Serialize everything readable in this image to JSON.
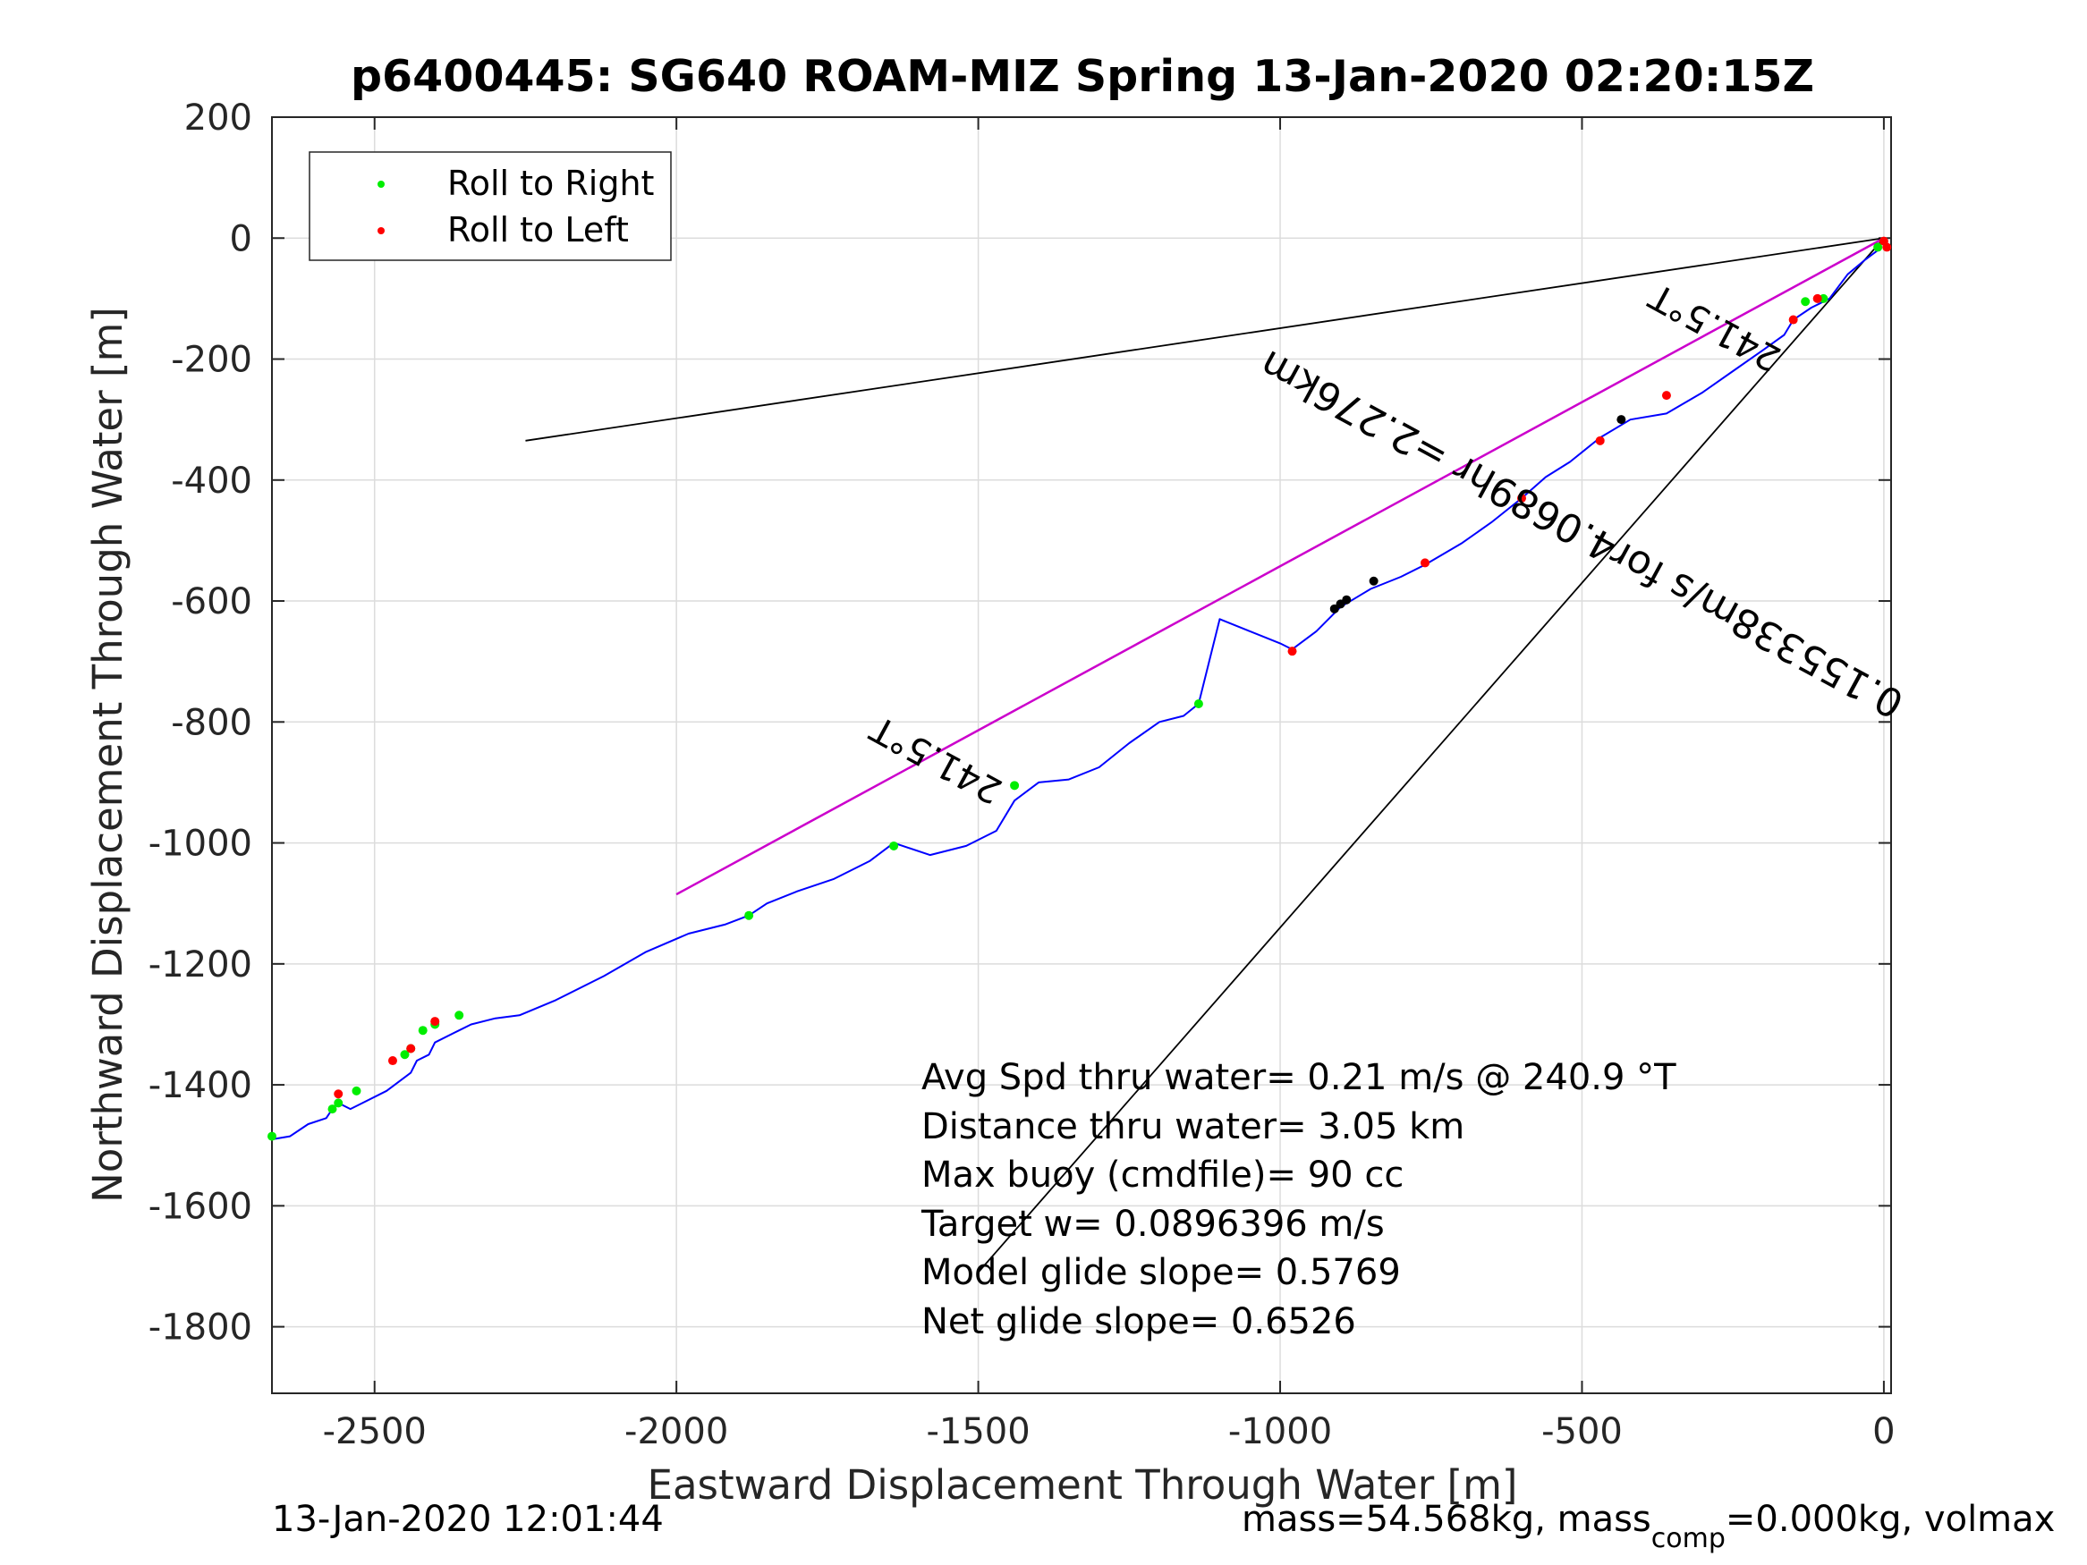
{
  "chart_data": {
    "type": "line",
    "title": "p6400445: SG640 ROAM-MIZ Spring 13-Jan-2020 02:20:15Z",
    "xlabel": "Eastward Displacement Through Water [m]",
    "ylabel": "Northward Displacement Through Water [m]",
    "xlim": [
      -2670,
      12
    ],
    "ylim": [
      -1910,
      200
    ],
    "xticks": [
      -2500,
      -2000,
      -1500,
      -1000,
      -500,
      0
    ],
    "yticks": [
      200,
      0,
      -200,
      -400,
      -600,
      -800,
      -1000,
      -1200,
      -1400,
      -1600,
      -1800
    ],
    "xtick_labels": [
      "-2500",
      "-2000",
      "-1500",
      "-1000",
      "-500",
      "0"
    ],
    "ytick_labels": [
      "200",
      "0",
      "-200",
      "-400",
      "-600",
      "-800",
      "-1000",
      "-1200",
      "-1400",
      "-1600",
      "-1800"
    ],
    "grid": true,
    "legend_position": "top-left",
    "legend": [
      {
        "label": "Roll to Right",
        "color": "#00ee00"
      },
      {
        "label": "Roll to Left",
        "color": "#ff0000"
      }
    ],
    "track": {
      "color": "#0000ff",
      "x": [
        0,
        -10,
        -30,
        -60,
        -90,
        -120,
        -150,
        -165,
        -200,
        -250,
        -300,
        -360,
        -420,
        -470,
        -520,
        -560,
        -600,
        -650,
        -700,
        -760,
        -800,
        -850,
        -900,
        -940,
        -980,
        -1000,
        -1050,
        -1100,
        -1135,
        -1160,
        -1200,
        -1250,
        -1300,
        -1350,
        -1400,
        -1440,
        -1470,
        -1520,
        -1580,
        -1640,
        -1680,
        -1740,
        -1800,
        -1850,
        -1880,
        -1920,
        -1980,
        -2050,
        -2120,
        -2200,
        -2260,
        -2300,
        -2340,
        -2360,
        -2400,
        -2410,
        -2430,
        -2440,
        -2460,
        -2480,
        -2520,
        -2540,
        -2560,
        -2570,
        -2580,
        -2610,
        -2640,
        -2670
      ],
      "y": [
        0,
        -20,
        -35,
        -60,
        -100,
        -115,
        -135,
        -160,
        -185,
        -220,
        -255,
        -290,
        -300,
        -330,
        -370,
        -395,
        -430,
        -470,
        -505,
        -540,
        -560,
        -580,
        -610,
        -650,
        -680,
        -670,
        -650,
        -630,
        -770,
        -790,
        -800,
        -835,
        -875,
        -895,
        -900,
        -930,
        -980,
        -1005,
        -1020,
        -1000,
        -1030,
        -1060,
        -1080,
        -1100,
        -1120,
        -1135,
        -1150,
        -1180,
        -1220,
        -1260,
        -1285,
        -1290,
        -1300,
        -1310,
        -1330,
        -1350,
        -1360,
        -1380,
        -1395,
        -1410,
        -1430,
        -1440,
        -1430,
        -1440,
        -1455,
        -1465,
        -1485,
        -1490
      ]
    },
    "roll_right_points": {
      "x": [
        -2670,
        -2570,
        -2560,
        -2530,
        -2450,
        -2440,
        -2420,
        -2400,
        -2360,
        -1880,
        -1640,
        -1440,
        -1135,
        -130,
        -100,
        -10
      ],
      "y": [
        -1485,
        -1440,
        -1430,
        -1410,
        -1350,
        -1340,
        -1310,
        -1300,
        -1285,
        -1120,
        -1005,
        -905,
        -770,
        -105,
        -100,
        -15
      ]
    },
    "roll_left_points": {
      "x": [
        -2560,
        -2470,
        -2400,
        -2440,
        -980,
        -760,
        -600,
        -470,
        -360,
        -150,
        -110,
        0,
        5
      ],
      "y": [
        -1415,
        -1360,
        -1295,
        -1340,
        -683,
        -537,
        -430,
        -335,
        -260,
        -135,
        -100,
        -5,
        -15
      ]
    },
    "black_points": {
      "x": [
        -910,
        -900,
        -890,
        -845,
        -435
      ],
      "y": [
        -613,
        -605,
        -598,
        -567,
        -300
      ]
    },
    "lines": [
      {
        "color": "#000000",
        "x": [
          0,
          -2250
        ],
        "y": [
          0,
          -335
        ]
      },
      {
        "color": "#000000",
        "x": [
          0,
          -2000
        ],
        "y": [
          0,
          -1085
        ]
      },
      {
        "color": "#cc00cc",
        "x": [
          0,
          -2000
        ],
        "y": [
          0,
          -1085
        ]
      },
      {
        "color": "#000000",
        "x": [
          0,
          -1500
        ],
        "y": [
          0,
          -1710
        ]
      }
    ],
    "rotated_labels": [
      {
        "text": "241.5°T",
        "x": -1560,
        "y": -845,
        "angle": 208.5
      },
      {
        "text": "241.5°T",
        "x": -270,
        "y": -130,
        "angle": 208.5
      },
      {
        "text": "0.155338m/s for4.0689hr =2.276km",
        "x": -490,
        "y": -470,
        "angle": 208.5
      }
    ],
    "annotations": [
      "Avg Spd thru water=  0.21 m/s @ 240.9 °T",
      "Distance thru water=  3.05 km",
      "Max buoy (cmdfile)= 90 cc",
      "Target w= 0.0896396 m/s",
      "Model glide slope= 0.5769",
      "Net glide slope= 0.6526"
    ]
  },
  "footer": {
    "timestamp": "13-Jan-2020 12:01:44",
    "mass_prefix": "mass=54.568kg, mass",
    "mass_sub": "comp",
    "mass_suffix": "=0.000kg, volmax"
  }
}
